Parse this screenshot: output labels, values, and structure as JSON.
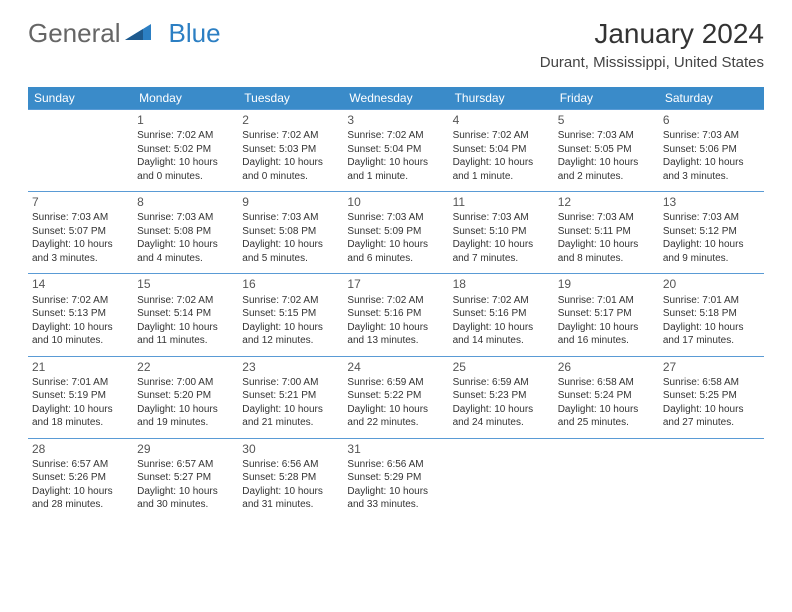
{
  "logo": {
    "text1": "General",
    "text2": "Blue"
  },
  "title": "January 2024",
  "location": "Durant, Mississippi, United States",
  "colors": {
    "header_bg": "#3a8bc9",
    "header_text": "#ffffff",
    "row_border": "#5a9bd5",
    "logo_gray": "#666666",
    "logo_blue": "#2c7fc3"
  },
  "dayNames": [
    "Sunday",
    "Monday",
    "Tuesday",
    "Wednesday",
    "Thursday",
    "Friday",
    "Saturday"
  ],
  "startDayIndex": 1,
  "daysInMonth": 31,
  "days": {
    "1": {
      "sunrise": "7:02 AM",
      "sunset": "5:02 PM",
      "daylight": "10 hours and 0 minutes."
    },
    "2": {
      "sunrise": "7:02 AM",
      "sunset": "5:03 PM",
      "daylight": "10 hours and 0 minutes."
    },
    "3": {
      "sunrise": "7:02 AM",
      "sunset": "5:04 PM",
      "daylight": "10 hours and 1 minute."
    },
    "4": {
      "sunrise": "7:02 AM",
      "sunset": "5:04 PM",
      "daylight": "10 hours and 1 minute."
    },
    "5": {
      "sunrise": "7:03 AM",
      "sunset": "5:05 PM",
      "daylight": "10 hours and 2 minutes."
    },
    "6": {
      "sunrise": "7:03 AM",
      "sunset": "5:06 PM",
      "daylight": "10 hours and 3 minutes."
    },
    "7": {
      "sunrise": "7:03 AM",
      "sunset": "5:07 PM",
      "daylight": "10 hours and 3 minutes."
    },
    "8": {
      "sunrise": "7:03 AM",
      "sunset": "5:08 PM",
      "daylight": "10 hours and 4 minutes."
    },
    "9": {
      "sunrise": "7:03 AM",
      "sunset": "5:08 PM",
      "daylight": "10 hours and 5 minutes."
    },
    "10": {
      "sunrise": "7:03 AM",
      "sunset": "5:09 PM",
      "daylight": "10 hours and 6 minutes."
    },
    "11": {
      "sunrise": "7:03 AM",
      "sunset": "5:10 PM",
      "daylight": "10 hours and 7 minutes."
    },
    "12": {
      "sunrise": "7:03 AM",
      "sunset": "5:11 PM",
      "daylight": "10 hours and 8 minutes."
    },
    "13": {
      "sunrise": "7:03 AM",
      "sunset": "5:12 PM",
      "daylight": "10 hours and 9 minutes."
    },
    "14": {
      "sunrise": "7:02 AM",
      "sunset": "5:13 PM",
      "daylight": "10 hours and 10 minutes."
    },
    "15": {
      "sunrise": "7:02 AM",
      "sunset": "5:14 PM",
      "daylight": "10 hours and 11 minutes."
    },
    "16": {
      "sunrise": "7:02 AM",
      "sunset": "5:15 PM",
      "daylight": "10 hours and 12 minutes."
    },
    "17": {
      "sunrise": "7:02 AM",
      "sunset": "5:16 PM",
      "daylight": "10 hours and 13 minutes."
    },
    "18": {
      "sunrise": "7:02 AM",
      "sunset": "5:16 PM",
      "daylight": "10 hours and 14 minutes."
    },
    "19": {
      "sunrise": "7:01 AM",
      "sunset": "5:17 PM",
      "daylight": "10 hours and 16 minutes."
    },
    "20": {
      "sunrise": "7:01 AM",
      "sunset": "5:18 PM",
      "daylight": "10 hours and 17 minutes."
    },
    "21": {
      "sunrise": "7:01 AM",
      "sunset": "5:19 PM",
      "daylight": "10 hours and 18 minutes."
    },
    "22": {
      "sunrise": "7:00 AM",
      "sunset": "5:20 PM",
      "daylight": "10 hours and 19 minutes."
    },
    "23": {
      "sunrise": "7:00 AM",
      "sunset": "5:21 PM",
      "daylight": "10 hours and 21 minutes."
    },
    "24": {
      "sunrise": "6:59 AM",
      "sunset": "5:22 PM",
      "daylight": "10 hours and 22 minutes."
    },
    "25": {
      "sunrise": "6:59 AM",
      "sunset": "5:23 PM",
      "daylight": "10 hours and 24 minutes."
    },
    "26": {
      "sunrise": "6:58 AM",
      "sunset": "5:24 PM",
      "daylight": "10 hours and 25 minutes."
    },
    "27": {
      "sunrise": "6:58 AM",
      "sunset": "5:25 PM",
      "daylight": "10 hours and 27 minutes."
    },
    "28": {
      "sunrise": "6:57 AM",
      "sunset": "5:26 PM",
      "daylight": "10 hours and 28 minutes."
    },
    "29": {
      "sunrise": "6:57 AM",
      "sunset": "5:27 PM",
      "daylight": "10 hours and 30 minutes."
    },
    "30": {
      "sunrise": "6:56 AM",
      "sunset": "5:28 PM",
      "daylight": "10 hours and 31 minutes."
    },
    "31": {
      "sunrise": "6:56 AM",
      "sunset": "5:29 PM",
      "daylight": "10 hours and 33 minutes."
    }
  },
  "labels": {
    "sunrise": "Sunrise:",
    "sunset": "Sunset:",
    "daylight": "Daylight:"
  }
}
